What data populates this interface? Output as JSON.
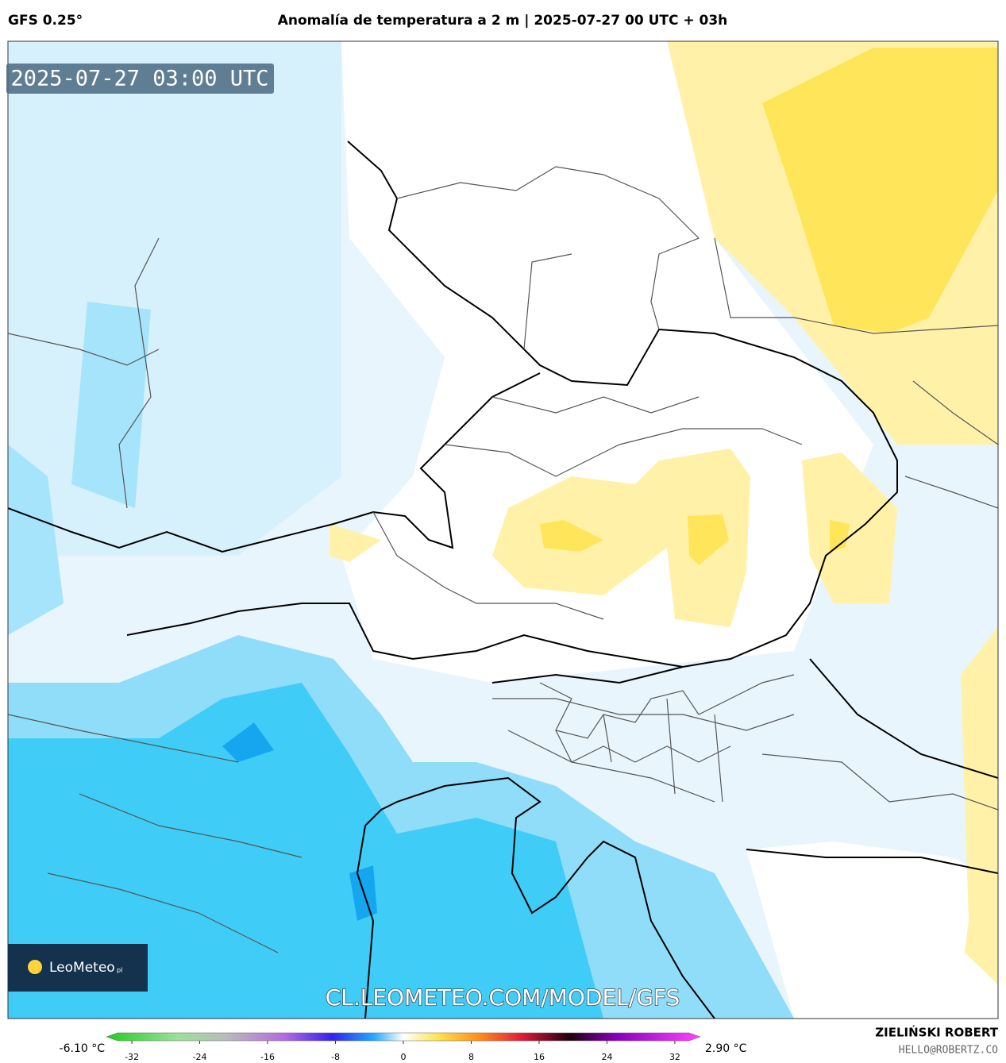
{
  "header": {
    "model": "GFS 0.25°",
    "title": "Anomalía de temperatura a 2 m | 2025-07-27 00 UTC + 03h"
  },
  "map": {
    "timestamp": "2025-07-27 03:00 UTC",
    "watermark": "CL.LEOMETEO.COM/MODEL/GFS",
    "logo": "LeoMeteo",
    "logo_suffix": "pl"
  },
  "colorbar": {
    "min_label": "-6.10 °C",
    "max_label": "2.90 °C",
    "lim": [
      -35,
      35
    ],
    "ticks": [
      -32,
      -24,
      -16,
      -8,
      0,
      8,
      16,
      24,
      32
    ]
  },
  "footer": {
    "author": "ZIELIŃSKI ROBERT",
    "email": "HELLO@ROBERTZ.CO"
  }
}
